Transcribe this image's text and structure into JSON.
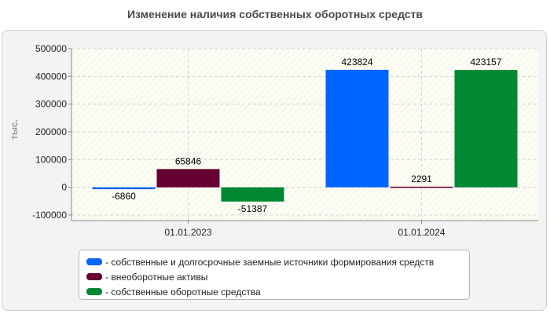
{
  "chart_data": {
    "type": "bar",
    "title": "Изменение наличия собственных оборотных средств",
    "ylabel": "тыс.",
    "xlabel": "",
    "categories": [
      "01.01.2023",
      "01.01.2024"
    ],
    "series": [
      {
        "name": "- собственные и долгосрочные заемные источники формирования средств",
        "color": "#0066ff",
        "values": [
          -6860,
          423824
        ]
      },
      {
        "name": "- внеоборотные активы",
        "color": "#660033",
        "values": [
          65846,
          2291
        ]
      },
      {
        "name": "- собственные оборотные средства",
        "color": "#008833",
        "values": [
          -51387,
          423157
        ]
      }
    ],
    "ylim": [
      -120000,
      500000
    ],
    "yticks": [
      -100000,
      0,
      100000,
      200000,
      300000,
      400000,
      500000
    ],
    "grid": true,
    "legend_position": "bottom"
  }
}
